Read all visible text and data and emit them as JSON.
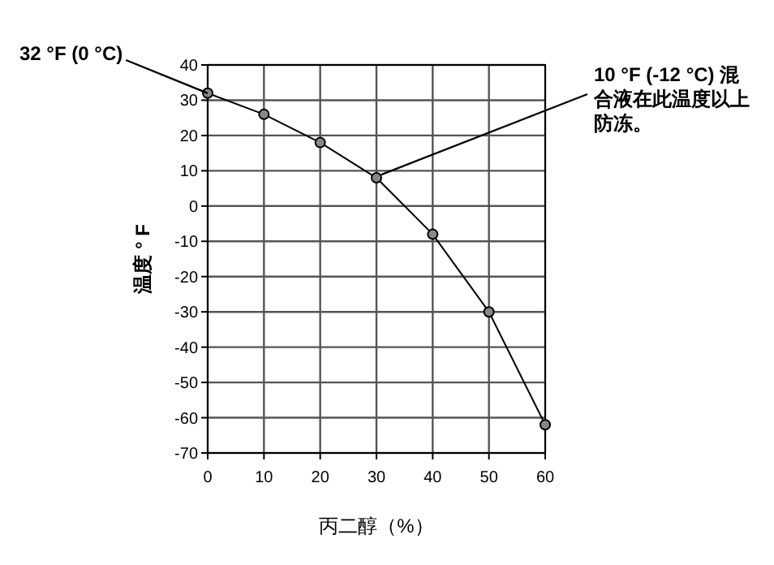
{
  "chart_data": {
    "type": "line",
    "xlabel": "丙二醇（%）",
    "ylabel": "温度 ° F",
    "x": [
      0,
      10,
      20,
      30,
      40,
      50,
      60
    ],
    "series": [
      {
        "color": "#000000",
        "values": [
          32,
          26,
          18,
          8,
          -8,
          -30,
          -62
        ]
      }
    ],
    "xlim": [
      0,
      60
    ],
    "xticks": [
      0,
      10,
      20,
      30,
      40,
      50,
      60
    ],
    "ylim": [
      -70,
      40
    ],
    "yticks": [
      -70,
      -60,
      -50,
      -40,
      -30,
      -20,
      -10,
      0,
      10,
      20,
      30,
      40
    ],
    "grid": true,
    "marker": "circle",
    "line_style": "solid",
    "annotations": [
      {
        "text": "32 °F (0 °C)",
        "x": 0,
        "y": 32
      },
      {
        "text": "10 °F (-12 °C) 混合液在此温度以上防冻。",
        "x": 30,
        "y": 8
      }
    ]
  }
}
